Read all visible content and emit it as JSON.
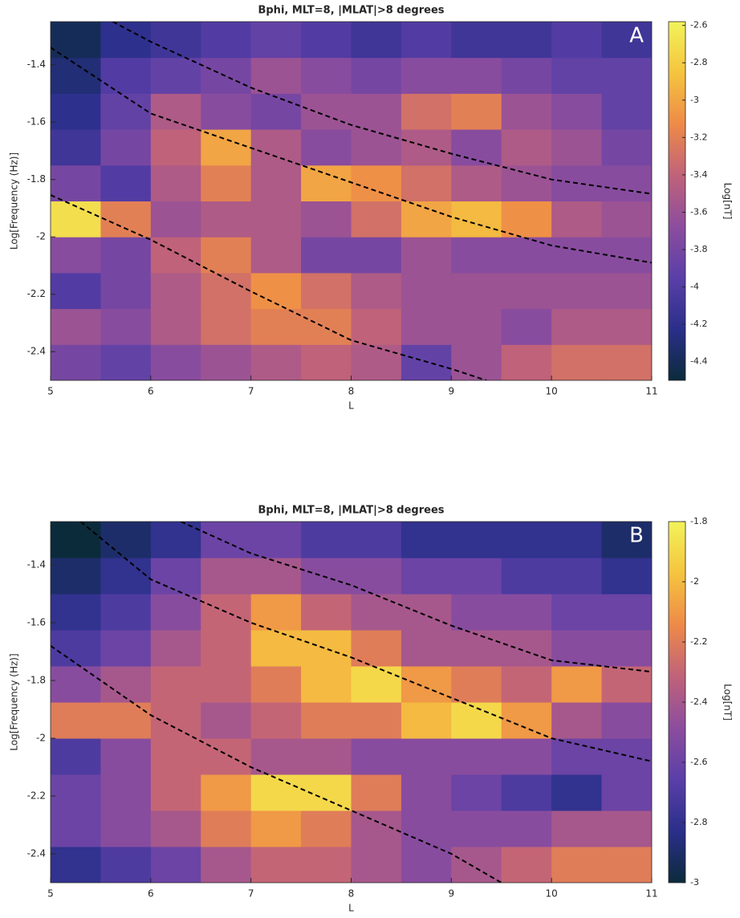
{
  "chart_data": [
    {
      "type": "heatmap",
      "title": "Bphi, MLT=8, |MLAT|>8 degrees",
      "xlabel": "L",
      "ylabel": "Log[Frequency (Hz)]",
      "annotation": "A",
      "x": [
        5,
        5.5,
        6,
        6.5,
        7,
        7.5,
        8,
        8.5,
        9,
        9.5,
        10,
        10.5,
        11
      ],
      "y": [
        -2.5,
        -2.375,
        -2.25,
        -2.125,
        -2,
        -1.875,
        -1.75,
        -1.625,
        -1.5,
        -1.375,
        -1.25
      ],
      "z": [
        [
          -3.8,
          -3.9,
          -3.7,
          -3.6,
          -3.5,
          -3.4,
          -3.5,
          -3.9,
          -3.6,
          -3.4,
          -3.3,
          -3.3
        ],
        [
          -3.6,
          -3.7,
          -3.5,
          -3.3,
          -3.2,
          -3.2,
          -3.4,
          -3.6,
          -3.6,
          -3.7,
          -3.5,
          -3.5
        ],
        [
          -4.0,
          -3.8,
          -3.5,
          -3.3,
          -3.1,
          -3.3,
          -3.5,
          -3.6,
          -3.6,
          -3.6,
          -3.6,
          -3.6
        ],
        [
          -3.7,
          -3.8,
          -3.4,
          -3.2,
          -3.5,
          -3.8,
          -3.8,
          -3.6,
          -3.7,
          -3.7,
          -3.7,
          -3.7
        ],
        [
          -2.7,
          -3.2,
          -3.6,
          -3.5,
          -3.5,
          -3.6,
          -3.3,
          -3.0,
          -2.9,
          -3.1,
          -3.5,
          -3.6
        ],
        [
          -3.8,
          -4.0,
          -3.5,
          -3.2,
          -3.5,
          -3.0,
          -3.1,
          -3.3,
          -3.5,
          -3.6,
          -3.7,
          -3.7
        ],
        [
          -4.1,
          -3.8,
          -3.4,
          -3.0,
          -3.5,
          -3.7,
          -3.6,
          -3.5,
          -3.7,
          -3.5,
          -3.6,
          -3.8
        ],
        [
          -4.2,
          -3.9,
          -3.5,
          -3.7,
          -3.8,
          -3.6,
          -3.6,
          -3.3,
          -3.2,
          -3.6,
          -3.7,
          -3.9
        ],
        [
          -4.3,
          -4.0,
          -3.9,
          -3.8,
          -3.6,
          -3.7,
          -3.8,
          -3.7,
          -3.7,
          -3.8,
          -3.9,
          -3.9
        ],
        [
          -4.4,
          -4.2,
          -4.1,
          -4.0,
          -3.9,
          -4.0,
          -4.1,
          -4.0,
          -4.1,
          -4.1,
          -4.0,
          -4.1
        ]
      ],
      "xlim": [
        5,
        11
      ],
      "ylim": [
        -2.5,
        -1.25
      ],
      "xticks": [
        5,
        6,
        7,
        8,
        9,
        10,
        11
      ],
      "yticks": [
        -2.4,
        -2.2,
        -2,
        -1.8,
        -1.6,
        -1.4
      ],
      "colorbar": {
        "label": "Log[nT]",
        "lim": [
          -4.5,
          -2.58
        ],
        "ticks": [
          -4.4,
          -4.2,
          -4,
          -3.8,
          -3.6,
          -3.4,
          -3.2,
          -3,
          -2.8,
          -2.6
        ]
      },
      "colormap": [
        "#0b2b3b",
        "#2a2f8a",
        "#5a3fa8",
        "#8c4d9e",
        "#c0627a",
        "#ee8a48",
        "#f5c43f",
        "#f2f35a"
      ],
      "lines": [
        {
          "color": "#000000",
          "x": [
            5,
            6,
            7,
            8,
            9,
            9.35
          ],
          "y": [
            -1.854,
            -2.01,
            -2.19,
            -2.36,
            -2.46,
            -2.5
          ]
        },
        {
          "color": "#000000",
          "x": [
            5,
            6,
            7,
            8,
            9,
            10,
            11
          ],
          "y": [
            -1.34,
            -1.57,
            -1.69,
            -1.81,
            -1.93,
            -2.03,
            -2.09
          ]
        },
        {
          "color": "#000000",
          "x": [
            5.62,
            6,
            7,
            8,
            9,
            10,
            11
          ],
          "y": [
            -1.25,
            -1.32,
            -1.48,
            -1.61,
            -1.71,
            -1.8,
            -1.85
          ]
        }
      ]
    },
    {
      "type": "heatmap",
      "title": "Bphi, MLT=8, |MLAT|>8 degrees",
      "xlabel": "L",
      "ylabel": "Log[Frequency (Hz)]",
      "annotation": "B",
      "x": [
        5,
        5.5,
        6,
        6.5,
        7,
        7.5,
        8,
        8.5,
        9,
        9.5,
        10,
        10.5,
        11
      ],
      "y": [
        -2.5,
        -2.375,
        -2.25,
        -2.125,
        -2,
        -1.875,
        -1.75,
        -1.625,
        -1.5,
        -1.375,
        -1.25
      ],
      "z": [
        [
          -2.8,
          -2.7,
          -2.6,
          -2.4,
          -2.3,
          -2.3,
          -2.4,
          -2.5,
          -2.4,
          -2.3,
          -2.2,
          -2.2
        ],
        [
          -2.6,
          -2.5,
          -2.4,
          -2.2,
          -2.1,
          -2.2,
          -2.4,
          -2.5,
          -2.5,
          -2.5,
          -2.4,
          -2.4
        ],
        [
          -2.6,
          -2.5,
          -2.3,
          -2.1,
          -1.9,
          -1.9,
          -2.2,
          -2.5,
          -2.6,
          -2.7,
          -2.8,
          -2.6
        ],
        [
          -2.7,
          -2.5,
          -2.3,
          -2.3,
          -2.4,
          -2.4,
          -2.5,
          -2.5,
          -2.5,
          -2.5,
          -2.6,
          -2.6
        ],
        [
          -2.2,
          -2.2,
          -2.3,
          -2.4,
          -2.3,
          -2.2,
          -2.2,
          -2.0,
          -1.9,
          -2.1,
          -2.4,
          -2.5
        ],
        [
          -2.5,
          -2.4,
          -2.3,
          -2.3,
          -2.2,
          -2.0,
          -1.9,
          -2.1,
          -2.2,
          -2.3,
          -2.1,
          -2.3
        ],
        [
          -2.7,
          -2.6,
          -2.4,
          -2.3,
          -2.0,
          -2.0,
          -2.2,
          -2.4,
          -2.4,
          -2.4,
          -2.5,
          -2.5
        ],
        [
          -2.8,
          -2.7,
          -2.5,
          -2.3,
          -2.1,
          -2.3,
          -2.4,
          -2.4,
          -2.5,
          -2.5,
          -2.6,
          -2.6
        ],
        [
          -2.9,
          -2.8,
          -2.6,
          -2.4,
          -2.4,
          -2.5,
          -2.5,
          -2.6,
          -2.6,
          -2.7,
          -2.7,
          -2.8
        ],
        [
          -3.0,
          -2.9,
          -2.8,
          -2.6,
          -2.6,
          -2.7,
          -2.7,
          -2.8,
          -2.8,
          -2.8,
          -2.8,
          -2.9
        ]
      ],
      "xlim": [
        5,
        11
      ],
      "ylim": [
        -2.5,
        -1.25
      ],
      "xticks": [
        5,
        6,
        7,
        8,
        9,
        10,
        11
      ],
      "yticks": [
        -2.4,
        -2.2,
        -2,
        -1.8,
        -1.6,
        -1.4
      ],
      "colorbar": {
        "label": "Log[nT]",
        "lim": [
          -3,
          -1.8
        ],
        "ticks": [
          -3,
          -2.8,
          -2.6,
          -2.4,
          -2.2,
          -2,
          -1.8
        ]
      },
      "colormap": [
        "#0b2b3b",
        "#2a2f8a",
        "#5a3fa8",
        "#8c4d9e",
        "#c0627a",
        "#ee8a48",
        "#f5c43f",
        "#f2f35a"
      ],
      "lines": [
        {
          "color": "#000000",
          "x": [
            5,
            6,
            7,
            8,
            9,
            9.5
          ],
          "y": [
            -1.68,
            -1.92,
            -2.1,
            -2.25,
            -2.4,
            -2.5
          ]
        },
        {
          "color": "#000000",
          "x": [
            5.3,
            6,
            7,
            8,
            9,
            10,
            11
          ],
          "y": [
            -1.25,
            -1.45,
            -1.6,
            -1.72,
            -1.86,
            -2,
            -2.08
          ]
        },
        {
          "color": "#000000",
          "x": [
            6.3,
            7,
            8,
            9,
            10,
            11
          ],
          "y": [
            -1.25,
            -1.36,
            -1.47,
            -1.61,
            -1.73,
            -1.77
          ]
        }
      ]
    }
  ]
}
